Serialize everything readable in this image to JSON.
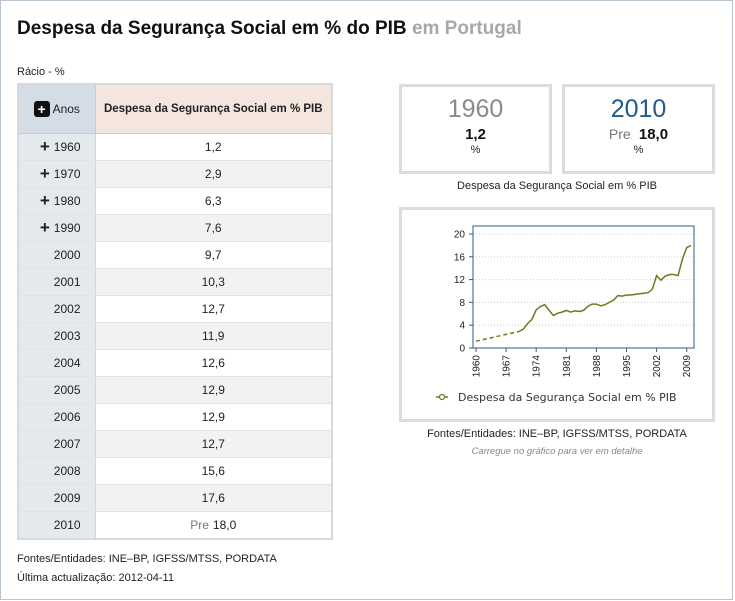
{
  "header": {
    "title": "Despesa da Segurança Social em % do PIB",
    "region": "em Portugal",
    "unit": "Rácio - %"
  },
  "table": {
    "year_header": "Anos",
    "value_header": "Despesa da Segurança Social em % PIB",
    "rows": [
      {
        "year": "1960",
        "value": "1,2",
        "expandable": true,
        "pre": ""
      },
      {
        "year": "1970",
        "value": "2,9",
        "expandable": true,
        "pre": ""
      },
      {
        "year": "1980",
        "value": "6,3",
        "expandable": true,
        "pre": ""
      },
      {
        "year": "1990",
        "value": "7,6",
        "expandable": true,
        "pre": ""
      },
      {
        "year": "2000",
        "value": "9,7",
        "expandable": false,
        "pre": ""
      },
      {
        "year": "2001",
        "value": "10,3",
        "expandable": false,
        "pre": ""
      },
      {
        "year": "2002",
        "value": "12,7",
        "expandable": false,
        "pre": ""
      },
      {
        "year": "2003",
        "value": "11,9",
        "expandable": false,
        "pre": ""
      },
      {
        "year": "2004",
        "value": "12,6",
        "expandable": false,
        "pre": ""
      },
      {
        "year": "2005",
        "value": "12,9",
        "expandable": false,
        "pre": ""
      },
      {
        "year": "2006",
        "value": "12,9",
        "expandable": false,
        "pre": ""
      },
      {
        "year": "2007",
        "value": "12,7",
        "expandable": false,
        "pre": ""
      },
      {
        "year": "2008",
        "value": "15,6",
        "expandable": false,
        "pre": ""
      },
      {
        "year": "2009",
        "value": "17,6",
        "expandable": false,
        "pre": ""
      },
      {
        "year": "2010",
        "value": "18,0",
        "expandable": false,
        "pre": "Pre"
      }
    ]
  },
  "summary": {
    "start": {
      "year": "1960",
      "value": "1,2",
      "unit": "%"
    },
    "end": {
      "year": "2010",
      "pre": "Pre",
      "value": "18,0",
      "unit": "%"
    },
    "caption": "Despesa da Segurança Social em % PIB"
  },
  "chart_sources": "Fontes/Entidades: INE–BP, IGFSS/MTSS, PORDATA",
  "chart_hint": "Carregue no gráfico para ver em detalhe",
  "footer": {
    "sources": "Fontes/Entidades: INE–BP, IGFSS/MTSS, PORDATA",
    "updated": "Última actualização: 2012-04-11"
  },
  "colors": {
    "line": "#6b7a1e",
    "plot_border": "#2b5d8c",
    "accent_blue": "#1f5b8c"
  },
  "chart_data": {
    "type": "line",
    "title": "",
    "legend": "Despesa da Segurança Social em % PIB",
    "legend_position": "bottom",
    "ylim": [
      0,
      20
    ],
    "yticks": [
      "0",
      "4",
      "8",
      "12",
      "16",
      "20"
    ],
    "ytick_values": [
      0,
      4,
      8,
      12,
      16,
      20
    ],
    "xlim": [
      1960,
      2010
    ],
    "xticks": [
      "1960",
      "1967",
      "1974",
      "1981",
      "1988",
      "1995",
      "2002",
      "2009"
    ],
    "xtick_values": [
      1960,
      1967,
      1974,
      1981,
      1988,
      1995,
      2002,
      2009
    ],
    "dashed_until": 1970,
    "x": [
      1960,
      1970,
      1971,
      1972,
      1973,
      1974,
      1975,
      1976,
      1977,
      1978,
      1979,
      1980,
      1981,
      1982,
      1983,
      1984,
      1985,
      1986,
      1987,
      1988,
      1989,
      1990,
      1991,
      1992,
      1993,
      1994,
      1995,
      1996,
      1997,
      1998,
      1999,
      2000,
      2001,
      2002,
      2003,
      2004,
      2005,
      2006,
      2007,
      2008,
      2009,
      2010
    ],
    "values": [
      1.2,
      2.9,
      3.3,
      4.3,
      5.0,
      6.7,
      7.3,
      7.6,
      6.6,
      5.7,
      6.1,
      6.3,
      6.6,
      6.3,
      6.5,
      6.4,
      6.6,
      7.3,
      7.7,
      7.7,
      7.4,
      7.6,
      8.0,
      8.4,
      9.2,
      9.1,
      9.3,
      9.3,
      9.4,
      9.5,
      9.6,
      9.7,
      10.3,
      12.7,
      11.9,
      12.6,
      12.9,
      12.9,
      12.7,
      15.6,
      17.6,
      18.0
    ]
  }
}
